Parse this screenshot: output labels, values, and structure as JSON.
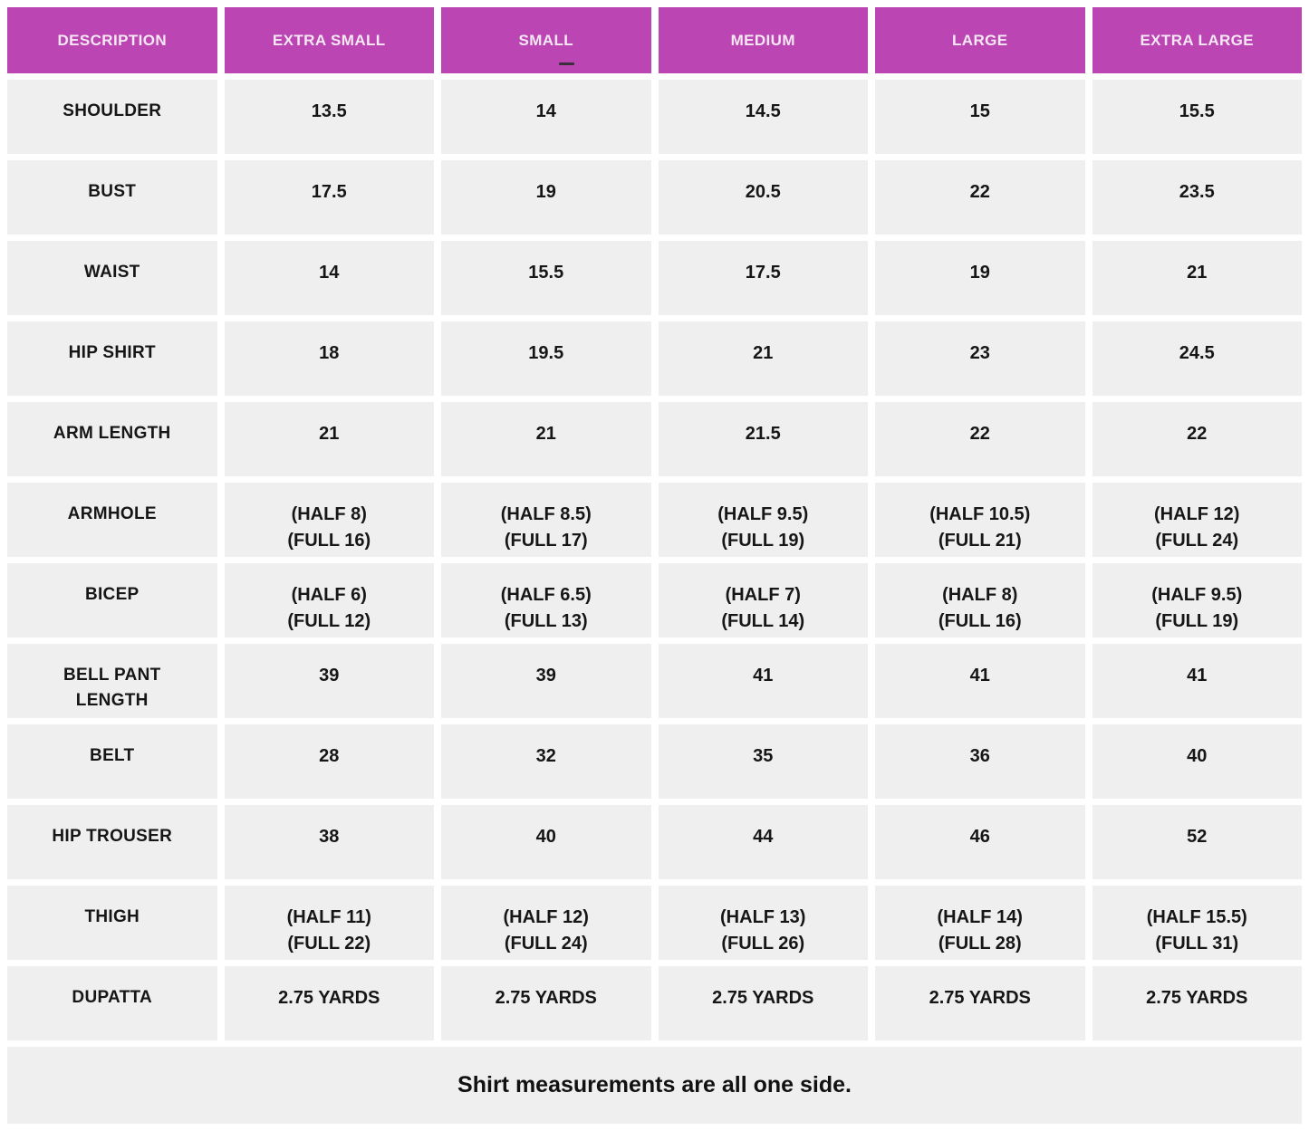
{
  "colors": {
    "header_bg": "#BC45B4",
    "header_text": "#F6E7F4",
    "cell_bg": "#EFEFEF",
    "cell_text": "#161616",
    "page_bg": "#FFFFFF"
  },
  "chart_data": {
    "type": "table",
    "title": "",
    "columns": [
      "DESCRIPTION",
      "EXTRA SMALL",
      "SMALL",
      "MEDIUM",
      "LARGE",
      "EXTRA LARGE"
    ],
    "rows": [
      {
        "label": "SHOULDER",
        "values": [
          "13.5",
          "14",
          "14.5",
          "15",
          "15.5"
        ]
      },
      {
        "label": "BUST",
        "values": [
          "17.5",
          "19",
          "20.5",
          "22",
          "23.5"
        ]
      },
      {
        "label": "WAIST",
        "values": [
          "14",
          "15.5",
          "17.5",
          "19",
          "21"
        ]
      },
      {
        "label": "HIP SHIRT",
        "values": [
          "18",
          "19.5",
          "21",
          "23",
          "24.5"
        ]
      },
      {
        "label": "ARM LENGTH",
        "values": [
          "21",
          "21",
          "21.5",
          "22",
          "22"
        ]
      },
      {
        "label": "ARMHOLE",
        "values": [
          [
            "(HALF 8)",
            "(FULL 16)"
          ],
          [
            "(HALF 8.5)",
            "(FULL 17)"
          ],
          [
            "(HALF 9.5)",
            "(FULL 19)"
          ],
          [
            "(HALF 10.5)",
            "(FULL 21)"
          ],
          [
            "(HALF 12)",
            "(FULL 24)"
          ]
        ]
      },
      {
        "label": "BICEP",
        "values": [
          [
            "(HALF 6)",
            "(FULL 12)"
          ],
          [
            "(HALF 6.5)",
            "(FULL 13)"
          ],
          [
            "(HALF 7)",
            "(FULL 14)"
          ],
          [
            "(HALF 8)",
            "(FULL 16)"
          ],
          [
            "(HALF 9.5)",
            "(FULL 19)"
          ]
        ]
      },
      {
        "label": [
          "BELL PANT",
          "LENGTH"
        ],
        "values": [
          "39",
          "39",
          "41",
          "41",
          "41"
        ]
      },
      {
        "label": "BELT",
        "values": [
          "28",
          "32",
          "35",
          "36",
          "40"
        ]
      },
      {
        "label": "HIP TROUSER",
        "values": [
          "38",
          "40",
          "44",
          "46",
          "52"
        ]
      },
      {
        "label": "THIGH",
        "values": [
          [
            "(HALF 11)",
            "(FULL 22)"
          ],
          [
            "(HALF 12)",
            "(FULL 24)"
          ],
          [
            "(HALF 13)",
            "(FULL 26)"
          ],
          [
            "(HALF 14)",
            "(FULL 28)"
          ],
          [
            "(HALF 15.5)",
            "(FULL 31)"
          ]
        ]
      },
      {
        "label": "DUPATTA",
        "values": [
          "2.75 YARDS",
          "2.75 YARDS",
          "2.75 YARDS",
          "2.75 YARDS",
          "2.75 YARDS"
        ]
      }
    ],
    "footer_note": "Shirt measurements are all one side."
  }
}
